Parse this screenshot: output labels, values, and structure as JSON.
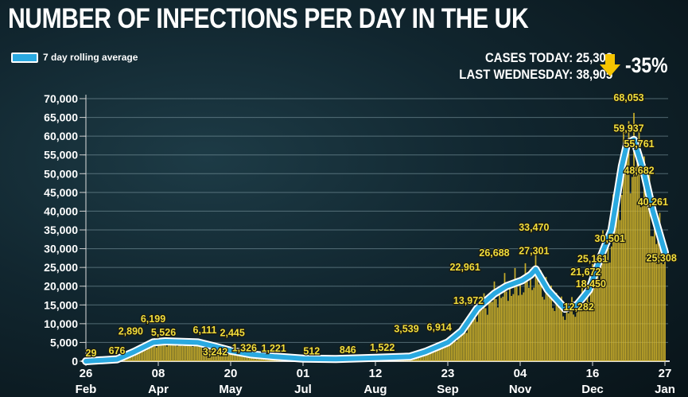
{
  "header": {
    "title": "NUMBER OF INFECTIONS PER DAY IN THE UK"
  },
  "legend": {
    "label": "7 day rolling average",
    "color": "#2aa9e0"
  },
  "stats": {
    "cases_today": "CASES TODAY: 25,308",
    "last_wednesday": "LAST WEDNESDAY: 38,905",
    "change": "-35%",
    "change_icon": "down-arrow-icon",
    "change_color": "#f5c400"
  },
  "chart_data": {
    "type": "bar",
    "title": "NUMBER OF INFECTIONS PER DAY IN THE UK",
    "ylim": [
      0,
      70000
    ],
    "yticks": [
      "0",
      "5,000",
      "10,000",
      "15,000",
      "20,000",
      "25,000",
      "30,000",
      "35,000",
      "40,000",
      "45,000",
      "50,000",
      "55,000",
      "60,000",
      "65,000",
      "70,000"
    ],
    "xticks": [
      {
        "date": "2020-02-26",
        "day": "26",
        "month": "Feb"
      },
      {
        "date": "2020-04-08",
        "day": "08",
        "month": "Apr"
      },
      {
        "date": "2020-05-20",
        "day": "20",
        "month": "May"
      },
      {
        "date": "2020-07-01",
        "day": "01",
        "month": "Jul"
      },
      {
        "date": "2020-08-12",
        "day": "12",
        "month": "Aug"
      },
      {
        "date": "2020-09-23",
        "day": "23",
        "month": "Sep"
      },
      {
        "date": "2020-11-04",
        "day": "04",
        "month": "Nov"
      },
      {
        "date": "2020-12-16",
        "day": "16",
        "month": "Dec"
      },
      {
        "date": "2021-01-27",
        "day": "27",
        "month": "Jan"
      }
    ],
    "xlim": [
      "2020-02-26",
      "2021-01-27"
    ],
    "grid": true,
    "bar_color": "#d9b92a",
    "series": [
      {
        "name": "7 day rolling average",
        "type": "line",
        "points": [
          [
            "2020-02-26",
            0
          ],
          [
            "2020-03-15",
            500
          ],
          [
            "2020-03-25",
            2500
          ],
          [
            "2020-04-05",
            5000
          ],
          [
            "2020-04-12",
            5300
          ],
          [
            "2020-05-01",
            5000
          ],
          [
            "2020-05-10",
            4000
          ],
          [
            "2020-05-20",
            2800
          ],
          [
            "2020-06-01",
            1800
          ],
          [
            "2020-06-15",
            1200
          ],
          [
            "2020-07-01",
            700
          ],
          [
            "2020-07-20",
            600
          ],
          [
            "2020-08-12",
            900
          ],
          [
            "2020-09-01",
            1200
          ],
          [
            "2020-09-10",
            2500
          ],
          [
            "2020-09-23",
            5000
          ],
          [
            "2020-10-01",
            8000
          ],
          [
            "2020-10-10",
            14000
          ],
          [
            "2020-10-20",
            18000
          ],
          [
            "2020-10-27",
            20000
          ],
          [
            "2020-11-05",
            21500
          ],
          [
            "2020-11-10",
            23000
          ],
          [
            "2020-11-13",
            24500
          ],
          [
            "2020-11-20",
            19000
          ],
          [
            "2020-11-30",
            14000
          ],
          [
            "2020-12-07",
            15000
          ],
          [
            "2020-12-14",
            19000
          ],
          [
            "2020-12-20",
            27000
          ],
          [
            "2020-12-27",
            35000
          ],
          [
            "2021-01-02",
            52000
          ],
          [
            "2021-01-05",
            58000
          ],
          [
            "2021-01-09",
            59000
          ],
          [
            "2021-01-15",
            50000
          ],
          [
            "2021-01-20",
            40000
          ],
          [
            "2021-01-27",
            29000
          ]
        ]
      }
    ],
    "annotations": [
      {
        "date": "2020-02-29",
        "value": 29,
        "text": "29"
      },
      {
        "date": "2020-03-15",
        "value": 676,
        "text": "676"
      },
      {
        "date": "2020-03-23",
        "value": 2890,
        "text": "2,890"
      },
      {
        "date": "2020-04-05",
        "value": 6199,
        "text": "6,199"
      },
      {
        "date": "2020-04-11",
        "value": 5526,
        "text": "5,526"
      },
      {
        "date": "2020-05-05",
        "value": 6111,
        "text": "6,111"
      },
      {
        "date": "2020-05-11",
        "value": 3242,
        "text": "3,242"
      },
      {
        "date": "2020-05-21",
        "value": 2445,
        "text": "2,445"
      },
      {
        "date": "2020-05-28",
        "value": 1326,
        "text": "1,326"
      },
      {
        "date": "2020-06-14",
        "value": 1221,
        "text": "1,221"
      },
      {
        "date": "2020-07-06",
        "value": 512,
        "text": "512"
      },
      {
        "date": "2020-07-27",
        "value": 846,
        "text": "846"
      },
      {
        "date": "2020-08-16",
        "value": 1522,
        "text": "1,522"
      },
      {
        "date": "2020-08-30",
        "value": 3539,
        "text": "3,539"
      },
      {
        "date": "2020-09-18",
        "value": 6914,
        "text": "6,914"
      },
      {
        "date": "2020-10-03",
        "value": 22961,
        "text": "22,961"
      },
      {
        "date": "2020-10-05",
        "value": 13972,
        "text": "13,972"
      },
      {
        "date": "2020-10-20",
        "value": 26688,
        "text": "26,688"
      },
      {
        "date": "2020-11-12",
        "value": 33470,
        "text": "33,470"
      },
      {
        "date": "2020-11-12",
        "value": 27301,
        "text": "27,301"
      },
      {
        "date": "2020-12-08",
        "value": 12282,
        "text": "12,282"
      },
      {
        "date": "2020-12-12",
        "value": 21672,
        "text": "21,672"
      },
      {
        "date": "2020-12-15",
        "value": 18450,
        "text": "18,450"
      },
      {
        "date": "2020-12-16",
        "value": 25161,
        "text": "25,161"
      },
      {
        "date": "2020-12-26",
        "value": 30501,
        "text": "30,501"
      },
      {
        "date": "2021-01-06",
        "value": 68053,
        "text": "68,053"
      },
      {
        "date": "2021-01-06",
        "value": 59937,
        "text": "59,937"
      },
      {
        "date": "2021-01-12",
        "value": 55761,
        "text": "55,761"
      },
      {
        "date": "2021-01-12",
        "value": 48682,
        "text": "48,682"
      },
      {
        "date": "2021-01-20",
        "value": 40261,
        "text": "40,261"
      },
      {
        "date": "2021-01-25",
        "value": 25308,
        "text": "25,308"
      }
    ]
  }
}
